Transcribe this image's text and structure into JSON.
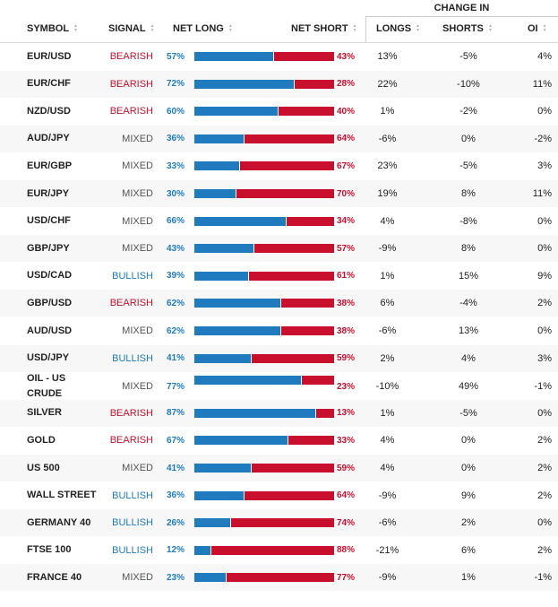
{
  "header": {
    "symbol": "SYMBOL",
    "signal": "SIGNAL",
    "net_long": "NET LONG",
    "net_short": "NET SHORT",
    "change_in": "CHANGE IN",
    "longs": "LONGS",
    "shorts": "SHORTS",
    "oi": "OI"
  },
  "colors": {
    "long": "#1f7bbd",
    "short": "#c8102e",
    "bearish": "#c8102e",
    "bullish": "#1f7bbd",
    "mixed": "#555555"
  },
  "rows": [
    {
      "symbol": "EUR/USD",
      "signal": "BEARISH",
      "long_pct": "57%",
      "long_value": 57,
      "short_pct": "43%",
      "longs": "13%",
      "shorts": "-5%",
      "oi": "4%"
    },
    {
      "symbol": "EUR/CHF",
      "signal": "BEARISH",
      "long_pct": "72%",
      "long_value": 72,
      "short_pct": "28%",
      "longs": "22%",
      "shorts": "-10%",
      "oi": "11%"
    },
    {
      "symbol": "NZD/USD",
      "signal": "BEARISH",
      "long_pct": "60%",
      "long_value": 60,
      "short_pct": "40%",
      "longs": "1%",
      "shorts": "-2%",
      "oi": "0%"
    },
    {
      "symbol": "AUD/JPY",
      "signal": "MIXED",
      "long_pct": "36%",
      "long_value": 36,
      "short_pct": "64%",
      "longs": "-6%",
      "shorts": "0%",
      "oi": "-2%"
    },
    {
      "symbol": "EUR/GBP",
      "signal": "MIXED",
      "long_pct": "33%",
      "long_value": 33,
      "short_pct": "67%",
      "longs": "23%",
      "shorts": "-5%",
      "oi": "3%"
    },
    {
      "symbol": "EUR/JPY",
      "signal": "MIXED",
      "long_pct": "30%",
      "long_value": 30,
      "short_pct": "70%",
      "longs": "19%",
      "shorts": "8%",
      "oi": "11%"
    },
    {
      "symbol": "USD/CHF",
      "signal": "MIXED",
      "long_pct": "66%",
      "long_value": 66,
      "short_pct": "34%",
      "longs": "4%",
      "shorts": "-8%",
      "oi": "0%"
    },
    {
      "symbol": "GBP/JPY",
      "signal": "MIXED",
      "long_pct": "43%",
      "long_value": 43,
      "short_pct": "57%",
      "longs": "-9%",
      "shorts": "8%",
      "oi": "0%"
    },
    {
      "symbol": "USD/CAD",
      "signal": "BULLISH",
      "long_pct": "39%",
      "long_value": 39,
      "short_pct": "61%",
      "longs": "1%",
      "shorts": "15%",
      "oi": "9%"
    },
    {
      "symbol": "GBP/USD",
      "signal": "BEARISH",
      "long_pct": "62%",
      "long_value": 62,
      "short_pct": "38%",
      "longs": "6%",
      "shorts": "-4%",
      "oi": "2%"
    },
    {
      "symbol": "AUD/USD",
      "signal": "MIXED",
      "long_pct": "62%",
      "long_value": 62,
      "short_pct": "38%",
      "longs": "-6%",
      "shorts": "13%",
      "oi": "0%"
    },
    {
      "symbol": "USD/JPY",
      "signal": "BULLISH",
      "long_pct": "41%",
      "long_value": 41,
      "short_pct": "59%",
      "longs": "2%",
      "shorts": "4%",
      "oi": "3%"
    },
    {
      "symbol": "OIL - US CRUDE",
      "signal": "MIXED",
      "long_pct": "77%",
      "long_value": 77,
      "short_pct": "23%",
      "longs": "-10%",
      "shorts": "49%",
      "oi": "-1%"
    },
    {
      "symbol": "SILVER",
      "signal": "BEARISH",
      "long_pct": "87%",
      "long_value": 87,
      "short_pct": "13%",
      "longs": "1%",
      "shorts": "-5%",
      "oi": "0%"
    },
    {
      "symbol": "GOLD",
      "signal": "BEARISH",
      "long_pct": "67%",
      "long_value": 67,
      "short_pct": "33%",
      "longs": "4%",
      "shorts": "0%",
      "oi": "2%"
    },
    {
      "symbol": "US 500",
      "signal": "MIXED",
      "long_pct": "41%",
      "long_value": 41,
      "short_pct": "59%",
      "longs": "4%",
      "shorts": "0%",
      "oi": "2%"
    },
    {
      "symbol": "WALL STREET",
      "signal": "BULLISH",
      "long_pct": "36%",
      "long_value": 36,
      "short_pct": "64%",
      "longs": "-9%",
      "shorts": "9%",
      "oi": "2%"
    },
    {
      "symbol": "GERMANY 40",
      "signal": "BULLISH",
      "long_pct": "26%",
      "long_value": 26,
      "short_pct": "74%",
      "longs": "-6%",
      "shorts": "2%",
      "oi": "0%"
    },
    {
      "symbol": "FTSE 100",
      "signal": "BULLISH",
      "long_pct": "12%",
      "long_value": 12,
      "short_pct": "88%",
      "longs": "-21%",
      "shorts": "6%",
      "oi": "2%"
    },
    {
      "symbol": "FRANCE 40",
      "signal": "MIXED",
      "long_pct": "23%",
      "long_value": 23,
      "short_pct": "77%",
      "longs": "-9%",
      "shorts": "1%",
      "oi": "-1%"
    }
  ]
}
